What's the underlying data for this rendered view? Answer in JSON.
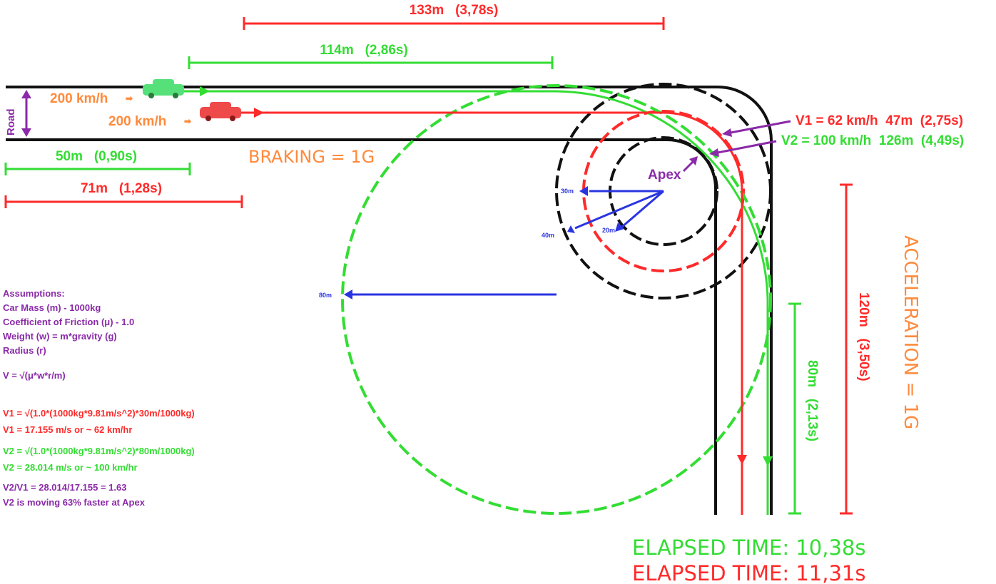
{
  "colors": {
    "red": "#ff2a2a",
    "green": "#33dd33",
    "orange": "#ff8a3c",
    "purple": "#8a2aa8",
    "blue": "#2a35e0",
    "black": "#111111"
  },
  "top_measures": {
    "red": "133m   (3,78s)",
    "green": "114m   (2,86s)"
  },
  "cars": {
    "green_speed": "200 km/h",
    "red_speed": "200 km/h",
    "arrow_glyph": "➡"
  },
  "road_label": "Road",
  "braking_label": "BRAKING = 1G",
  "bottom_left_measures": {
    "green": "50m   (0,90s)",
    "red": "71m   (1,28s)"
  },
  "apex_label": "Apex",
  "radii": {
    "r30": "30m",
    "r20": "20m",
    "r40": "40m",
    "r80": "80m"
  },
  "speeds_at_apex": {
    "v1": "V1 = 62 km/h  47m  (2,75s)",
    "v2": "V2 = 100 km/h  126m  (4,49s)"
  },
  "vertical_measures": {
    "red": "120m   (3,50s)",
    "green": "80m   (2,13s)"
  },
  "acceleration_label": "ACCELERATION = 1G",
  "assumptions": {
    "heading": "Assumptions:",
    "lines": [
      "Car Mass (m) - 1000kg",
      "Coefficient of Friction (μ) - 1.0",
      "Weight (w) = m*gravity (g)",
      "Radius (r)"
    ],
    "formula": "V = √(μ*w*r/m)"
  },
  "calc_v1": [
    "V1 = √(1.0*(1000kg*9.81m/s^2)*30m/1000kg)",
    "V1 = 17.155 m/s or ~ 62 km/hr"
  ],
  "calc_v2": [
    "V2 = √(1.0*(1000kg*9.81m/s^2)*80m/1000kg)",
    "V2 = 28.014 m/s or ~ 100 km/hr"
  ],
  "calc_ratio": [
    "V2/V1 = 28.014/17.155 = 1.63",
    "V2 is moving 63% faster at Apex"
  ],
  "elapsed": {
    "green": "ELAPSED TIME: 10,38s",
    "red": "ELAPSED TIME: 11,31s"
  }
}
